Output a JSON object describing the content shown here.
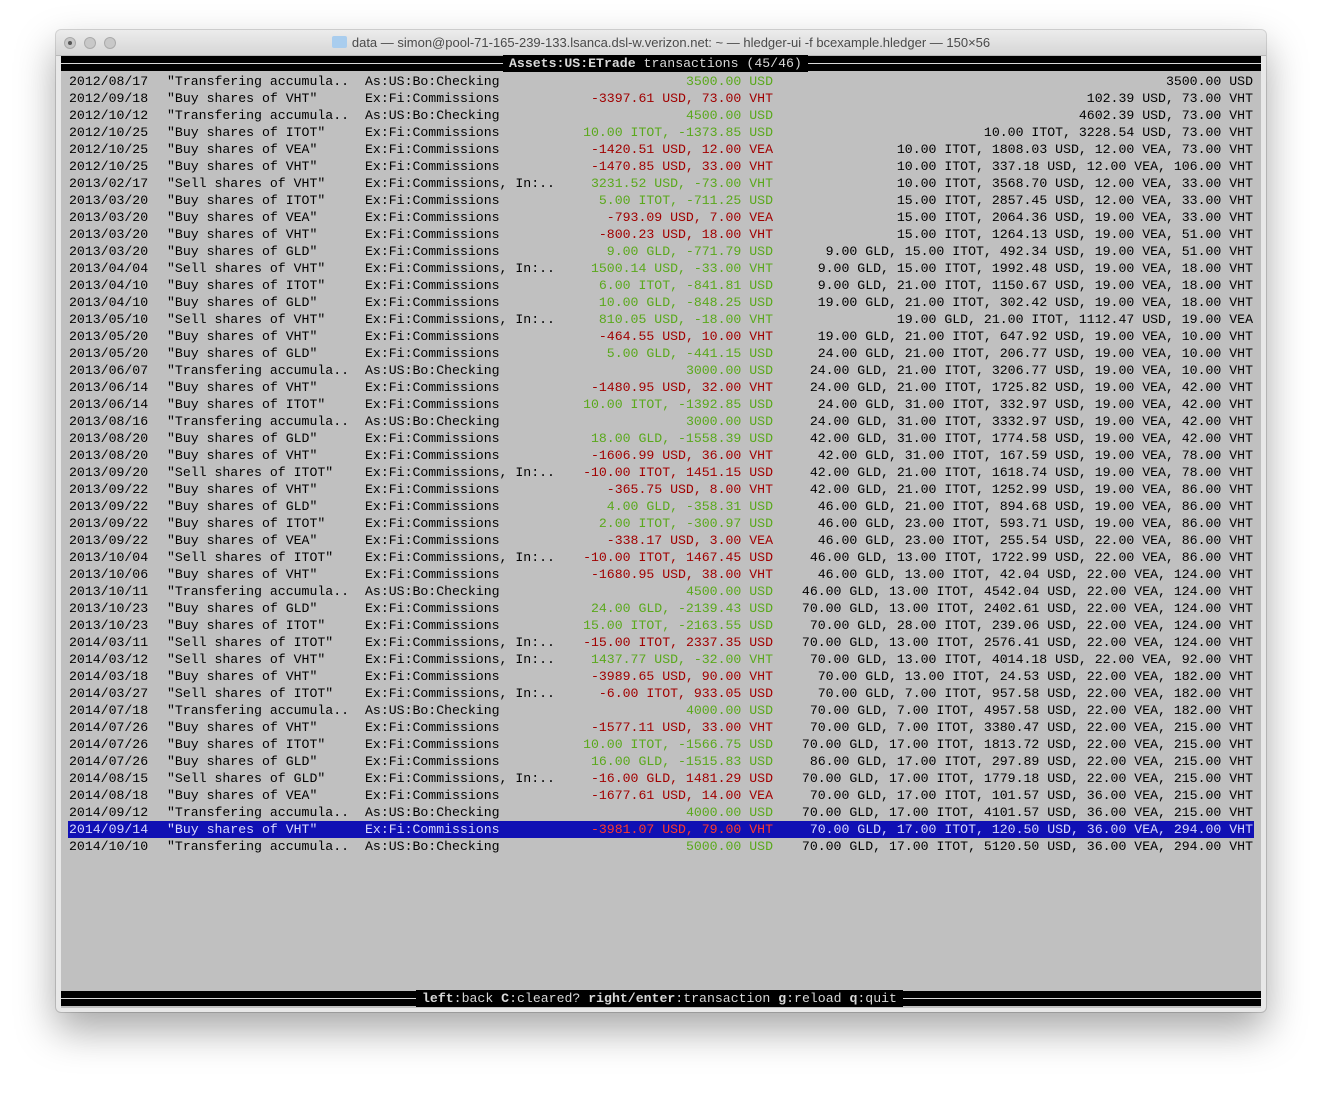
{
  "window": {
    "title": "data — simon@pool-71-165-239-133.lsanca.dsl-w.verizon.net: ~ — hledger-ui -f bcexample.hledger — 150×56"
  },
  "header": {
    "account": "Assets:US:ETrade",
    "suffix": " transactions (45/46)"
  },
  "footer": {
    "keys": [
      {
        "key": "left",
        "action": "back"
      },
      {
        "key": "C",
        "action": "cleared?"
      },
      {
        "key": "right/enter",
        "action": "transaction"
      },
      {
        "key": "g",
        "action": "reload"
      },
      {
        "key": "q",
        "action": "quit"
      }
    ]
  },
  "colors": {
    "positive": "#5aa81c",
    "negative": "#a00000",
    "selected_bg": "#1010b4",
    "background": "#c0c0c0"
  },
  "selected_index": 44,
  "rows": [
    {
      "date": "2012/08/17",
      "desc": "\"Transfering accumula..",
      "acct": "As:US:Bo:Checking",
      "change": "3500.00 USD",
      "balance": "3500.00 USD"
    },
    {
      "date": "2012/09/18",
      "desc": "\"Buy shares of VHT\"",
      "acct": "Ex:Fi:Commissions",
      "change": "-3397.61 USD, 73.00 VHT",
      "balance": "102.39 USD, 73.00 VHT"
    },
    {
      "date": "2012/10/12",
      "desc": "\"Transfering accumula..",
      "acct": "As:US:Bo:Checking",
      "change": "4500.00 USD",
      "balance": "4602.39 USD, 73.00 VHT"
    },
    {
      "date": "2012/10/25",
      "desc": "\"Buy shares of ITOT\"",
      "acct": "Ex:Fi:Commissions",
      "change": "10.00 ITOT, -1373.85 USD",
      "balance": "10.00 ITOT, 3228.54 USD, 73.00 VHT"
    },
    {
      "date": "2012/10/25",
      "desc": "\"Buy shares of VEA\"",
      "acct": "Ex:Fi:Commissions",
      "change": "-1420.51 USD, 12.00 VEA",
      "balance": "10.00 ITOT, 1808.03 USD, 12.00 VEA, 73.00 VHT"
    },
    {
      "date": "2012/10/25",
      "desc": "\"Buy shares of VHT\"",
      "acct": "Ex:Fi:Commissions",
      "change": "-1470.85 USD, 33.00 VHT",
      "balance": "10.00 ITOT, 337.18 USD, 12.00 VEA, 106.00 VHT"
    },
    {
      "date": "2013/02/17",
      "desc": "\"Sell shares of VHT\"",
      "acct": "Ex:Fi:Commissions, In:..",
      "change": "3231.52 USD, -73.00 VHT",
      "balance": "10.00 ITOT, 3568.70 USD, 12.00 VEA, 33.00 VHT"
    },
    {
      "date": "2013/03/20",
      "desc": "\"Buy shares of ITOT\"",
      "acct": "Ex:Fi:Commissions",
      "change": "5.00 ITOT, -711.25 USD",
      "balance": "15.00 ITOT, 2857.45 USD, 12.00 VEA, 33.00 VHT"
    },
    {
      "date": "2013/03/20",
      "desc": "\"Buy shares of VEA\"",
      "acct": "Ex:Fi:Commissions",
      "change": "-793.09 USD, 7.00 VEA",
      "balance": "15.00 ITOT, 2064.36 USD, 19.00 VEA, 33.00 VHT"
    },
    {
      "date": "2013/03/20",
      "desc": "\"Buy shares of VHT\"",
      "acct": "Ex:Fi:Commissions",
      "change": "-800.23 USD, 18.00 VHT",
      "balance": "15.00 ITOT, 1264.13 USD, 19.00 VEA, 51.00 VHT"
    },
    {
      "date": "2013/03/20",
      "desc": "\"Buy shares of GLD\"",
      "acct": "Ex:Fi:Commissions",
      "change": "9.00 GLD, -771.79 USD",
      "balance": "9.00 GLD, 15.00 ITOT, 492.34 USD, 19.00 VEA, 51.00 VHT"
    },
    {
      "date": "2013/04/04",
      "desc": "\"Sell shares of VHT\"",
      "acct": "Ex:Fi:Commissions, In:..",
      "change": "1500.14 USD, -33.00 VHT",
      "balance": "9.00 GLD, 15.00 ITOT, 1992.48 USD, 19.00 VEA, 18.00 VHT"
    },
    {
      "date": "2013/04/10",
      "desc": "\"Buy shares of ITOT\"",
      "acct": "Ex:Fi:Commissions",
      "change": "6.00 ITOT, -841.81 USD",
      "balance": "9.00 GLD, 21.00 ITOT, 1150.67 USD, 19.00 VEA, 18.00 VHT"
    },
    {
      "date": "2013/04/10",
      "desc": "\"Buy shares of GLD\"",
      "acct": "Ex:Fi:Commissions",
      "change": "10.00 GLD, -848.25 USD",
      "balance": "19.00 GLD, 21.00 ITOT, 302.42 USD, 19.00 VEA, 18.00 VHT"
    },
    {
      "date": "2013/05/10",
      "desc": "\"Sell shares of VHT\"",
      "acct": "Ex:Fi:Commissions, In:..",
      "change": "810.05 USD, -18.00 VHT",
      "balance": "19.00 GLD, 21.00 ITOT, 1112.47 USD, 19.00 VEA"
    },
    {
      "date": "2013/05/20",
      "desc": "\"Buy shares of VHT\"",
      "acct": "Ex:Fi:Commissions",
      "change": "-464.55 USD, 10.00 VHT",
      "balance": "19.00 GLD, 21.00 ITOT, 647.92 USD, 19.00 VEA, 10.00 VHT"
    },
    {
      "date": "2013/05/20",
      "desc": "\"Buy shares of GLD\"",
      "acct": "Ex:Fi:Commissions",
      "change": "5.00 GLD, -441.15 USD",
      "balance": "24.00 GLD, 21.00 ITOT, 206.77 USD, 19.00 VEA, 10.00 VHT"
    },
    {
      "date": "2013/06/07",
      "desc": "\"Transfering accumula..",
      "acct": "As:US:Bo:Checking",
      "change": "3000.00 USD",
      "balance": "24.00 GLD, 21.00 ITOT, 3206.77 USD, 19.00 VEA, 10.00 VHT"
    },
    {
      "date": "2013/06/14",
      "desc": "\"Buy shares of VHT\"",
      "acct": "Ex:Fi:Commissions",
      "change": "-1480.95 USD, 32.00 VHT",
      "balance": "24.00 GLD, 21.00 ITOT, 1725.82 USD, 19.00 VEA, 42.00 VHT"
    },
    {
      "date": "2013/06/14",
      "desc": "\"Buy shares of ITOT\"",
      "acct": "Ex:Fi:Commissions",
      "change": "10.00 ITOT, -1392.85 USD",
      "balance": "24.00 GLD, 31.00 ITOT, 332.97 USD, 19.00 VEA, 42.00 VHT"
    },
    {
      "date": "2013/08/16",
      "desc": "\"Transfering accumula..",
      "acct": "As:US:Bo:Checking",
      "change": "3000.00 USD",
      "balance": "24.00 GLD, 31.00 ITOT, 3332.97 USD, 19.00 VEA, 42.00 VHT"
    },
    {
      "date": "2013/08/20",
      "desc": "\"Buy shares of GLD\"",
      "acct": "Ex:Fi:Commissions",
      "change": "18.00 GLD, -1558.39 USD",
      "balance": "42.00 GLD, 31.00 ITOT, 1774.58 USD, 19.00 VEA, 42.00 VHT"
    },
    {
      "date": "2013/08/20",
      "desc": "\"Buy shares of VHT\"",
      "acct": "Ex:Fi:Commissions",
      "change": "-1606.99 USD, 36.00 VHT",
      "balance": "42.00 GLD, 31.00 ITOT, 167.59 USD, 19.00 VEA, 78.00 VHT"
    },
    {
      "date": "2013/09/20",
      "desc": "\"Sell shares of ITOT\"",
      "acct": "Ex:Fi:Commissions, In:..",
      "change": "-10.00 ITOT, 1451.15 USD",
      "balance": "42.00 GLD, 21.00 ITOT, 1618.74 USD, 19.00 VEA, 78.00 VHT"
    },
    {
      "date": "2013/09/22",
      "desc": "\"Buy shares of VHT\"",
      "acct": "Ex:Fi:Commissions",
      "change": "-365.75 USD, 8.00 VHT",
      "balance": "42.00 GLD, 21.00 ITOT, 1252.99 USD, 19.00 VEA, 86.00 VHT"
    },
    {
      "date": "2013/09/22",
      "desc": "\"Buy shares of GLD\"",
      "acct": "Ex:Fi:Commissions",
      "change": "4.00 GLD, -358.31 USD",
      "balance": "46.00 GLD, 21.00 ITOT, 894.68 USD, 19.00 VEA, 86.00 VHT"
    },
    {
      "date": "2013/09/22",
      "desc": "\"Buy shares of ITOT\"",
      "acct": "Ex:Fi:Commissions",
      "change": "2.00 ITOT, -300.97 USD",
      "balance": "46.00 GLD, 23.00 ITOT, 593.71 USD, 19.00 VEA, 86.00 VHT"
    },
    {
      "date": "2013/09/22",
      "desc": "\"Buy shares of VEA\"",
      "acct": "Ex:Fi:Commissions",
      "change": "-338.17 USD, 3.00 VEA",
      "balance": "46.00 GLD, 23.00 ITOT, 255.54 USD, 22.00 VEA, 86.00 VHT"
    },
    {
      "date": "2013/10/04",
      "desc": "\"Sell shares of ITOT\"",
      "acct": "Ex:Fi:Commissions, In:..",
      "change": "-10.00 ITOT, 1467.45 USD",
      "balance": "46.00 GLD, 13.00 ITOT, 1722.99 USD, 22.00 VEA, 86.00 VHT"
    },
    {
      "date": "2013/10/06",
      "desc": "\"Buy shares of VHT\"",
      "acct": "Ex:Fi:Commissions",
      "change": "-1680.95 USD, 38.00 VHT",
      "balance": "46.00 GLD, 13.00 ITOT, 42.04 USD, 22.00 VEA, 124.00 VHT"
    },
    {
      "date": "2013/10/11",
      "desc": "\"Transfering accumula..",
      "acct": "As:US:Bo:Checking",
      "change": "4500.00 USD",
      "balance": "46.00 GLD, 13.00 ITOT, 4542.04 USD, 22.00 VEA, 124.00 VHT"
    },
    {
      "date": "2013/10/23",
      "desc": "\"Buy shares of GLD\"",
      "acct": "Ex:Fi:Commissions",
      "change": "24.00 GLD, -2139.43 USD",
      "balance": "70.00 GLD, 13.00 ITOT, 2402.61 USD, 22.00 VEA, 124.00 VHT"
    },
    {
      "date": "2013/10/23",
      "desc": "\"Buy shares of ITOT\"",
      "acct": "Ex:Fi:Commissions",
      "change": "15.00 ITOT, -2163.55 USD",
      "balance": "70.00 GLD, 28.00 ITOT, 239.06 USD, 22.00 VEA, 124.00 VHT"
    },
    {
      "date": "2014/03/11",
      "desc": "\"Sell shares of ITOT\"",
      "acct": "Ex:Fi:Commissions, In:..",
      "change": "-15.00 ITOT, 2337.35 USD",
      "balance": "70.00 GLD, 13.00 ITOT, 2576.41 USD, 22.00 VEA, 124.00 VHT"
    },
    {
      "date": "2014/03/12",
      "desc": "\"Sell shares of VHT\"",
      "acct": "Ex:Fi:Commissions, In:..",
      "change": "1437.77 USD, -32.00 VHT",
      "balance": "70.00 GLD, 13.00 ITOT, 4014.18 USD, 22.00 VEA, 92.00 VHT"
    },
    {
      "date": "2014/03/18",
      "desc": "\"Buy shares of VHT\"",
      "acct": "Ex:Fi:Commissions",
      "change": "-3989.65 USD, 90.00 VHT",
      "balance": "70.00 GLD, 13.00 ITOT, 24.53 USD, 22.00 VEA, 182.00 VHT"
    },
    {
      "date": "2014/03/27",
      "desc": "\"Sell shares of ITOT\"",
      "acct": "Ex:Fi:Commissions, In:..",
      "change": "-6.00 ITOT, 933.05 USD",
      "balance": "70.00 GLD, 7.00 ITOT, 957.58 USD, 22.00 VEA, 182.00 VHT"
    },
    {
      "date": "2014/07/18",
      "desc": "\"Transfering accumula..",
      "acct": "As:US:Bo:Checking",
      "change": "4000.00 USD",
      "balance": "70.00 GLD, 7.00 ITOT, 4957.58 USD, 22.00 VEA, 182.00 VHT"
    },
    {
      "date": "2014/07/26",
      "desc": "\"Buy shares of VHT\"",
      "acct": "Ex:Fi:Commissions",
      "change": "-1577.11 USD, 33.00 VHT",
      "balance": "70.00 GLD, 7.00 ITOT, 3380.47 USD, 22.00 VEA, 215.00 VHT"
    },
    {
      "date": "2014/07/26",
      "desc": "\"Buy shares of ITOT\"",
      "acct": "Ex:Fi:Commissions",
      "change": "10.00 ITOT, -1566.75 USD",
      "balance": "70.00 GLD, 17.00 ITOT, 1813.72 USD, 22.00 VEA, 215.00 VHT"
    },
    {
      "date": "2014/07/26",
      "desc": "\"Buy shares of GLD\"",
      "acct": "Ex:Fi:Commissions",
      "change": "16.00 GLD, -1515.83 USD",
      "balance": "86.00 GLD, 17.00 ITOT, 297.89 USD, 22.00 VEA, 215.00 VHT"
    },
    {
      "date": "2014/08/15",
      "desc": "\"Sell shares of GLD\"",
      "acct": "Ex:Fi:Commissions, In:..",
      "change": "-16.00 GLD, 1481.29 USD",
      "balance": "70.00 GLD, 17.00 ITOT, 1779.18 USD, 22.00 VEA, 215.00 VHT"
    },
    {
      "date": "2014/08/18",
      "desc": "\"Buy shares of VEA\"",
      "acct": "Ex:Fi:Commissions",
      "change": "-1677.61 USD, 14.00 VEA",
      "balance": "70.00 GLD, 17.00 ITOT, 101.57 USD, 36.00 VEA, 215.00 VHT"
    },
    {
      "date": "2014/09/12",
      "desc": "\"Transfering accumula..",
      "acct": "As:US:Bo:Checking",
      "change": "4000.00 USD",
      "balance": "70.00 GLD, 17.00 ITOT, 4101.57 USD, 36.00 VEA, 215.00 VHT"
    },
    {
      "date": "2014/09/14",
      "desc": "\"Buy shares of VHT\"",
      "acct": "Ex:Fi:Commissions",
      "change": "-3981.07 USD, 79.00 VHT",
      "balance": "70.00 GLD, 17.00 ITOT, 120.50 USD, 36.00 VEA, 294.00 VHT"
    },
    {
      "date": "2014/10/10",
      "desc": "\"Transfering accumula..",
      "acct": "As:US:Bo:Checking",
      "change": "5000.00 USD",
      "balance": "70.00 GLD, 17.00 ITOT, 5120.50 USD, 36.00 VEA, 294.00 VHT"
    }
  ]
}
